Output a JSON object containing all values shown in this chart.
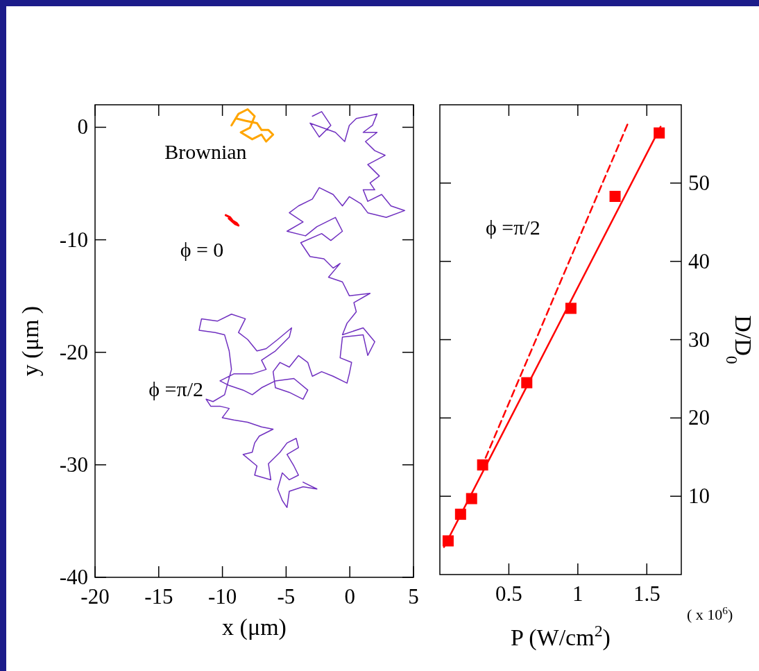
{
  "chart_data": [
    {
      "type": "line",
      "xlabel": "x (μm)",
      "ylabel": "y (μm )",
      "xlim": [
        -20,
        5
      ],
      "xticks": [
        -20,
        -15,
        -10,
        -5,
        0,
        5
      ],
      "ylim": [
        -40,
        2
      ],
      "yticks": [
        -40,
        -30,
        -20,
        -10,
        0
      ],
      "series": [
        {
          "name": "Brownian",
          "color": "#ffa500",
          "x": [
            -9.29,
            -8.74,
            -8.02,
            -7.47,
            -7.84,
            -8.56,
            -7.66,
            -6.93,
            -6.57,
            -6.02,
            -6.39,
            -6.93,
            -7.29,
            -8.2,
            -8.92
          ],
          "values": [
            0.17,
            1.19,
            1.6,
            0.98,
            -0.04,
            -0.45,
            -1.06,
            -0.65,
            -1.27,
            -0.65,
            -0.24,
            -0.24,
            0.37,
            0.58,
            0.78
          ]
        },
        {
          "name": "ϕ = 0",
          "color": "#ff0000",
          "x": [
            -9.74,
            -9.4,
            -9.2,
            -8.9,
            -8.74,
            -9.0,
            -9.5
          ],
          "values": [
            -7.81,
            -8.0,
            -8.3,
            -8.5,
            -8.73,
            -8.6,
            -8.1
          ]
        },
        {
          "name": "ϕ =π/2",
          "color": "#7030c0",
          "x": [
            -2.94,
            -2.21,
            -1.49,
            -2.4,
            -3.12,
            -1.13,
            -0.4,
            -0.04,
            0.51,
            1.41,
            2.14,
            1.78,
            1.05,
            2.14,
            1.23,
            1.96,
            2.77,
            1.41,
            2.32,
            1.59,
            1.96,
            1.05,
            1.41,
            2.5,
            3.23,
            4.31,
            2.86,
            1.41,
            0.87,
            -0.04,
            -0.58,
            -1.31,
            -2.4,
            -2.94,
            -4.03,
            -4.75,
            -3.67,
            -4.93,
            -3.48,
            -2.58,
            -1.13,
            -0.58,
            -1.49,
            -2.21,
            -3.85,
            -3.12,
            -2.03,
            -1.31,
            -0.76,
            -1.67,
            -0.58,
            -0.04,
            1.59,
            0.32,
            0.51,
            -0.22,
            -0.58,
            1.05,
            1.96,
            1.41,
            1.05,
            -0.58,
            -0.76,
            0.14,
            -0.04,
            -0.22,
            -1.31,
            -2.21,
            -2.94,
            -3.3,
            -4.03,
            -4.75,
            -5.48,
            -6.02,
            -5.84,
            -4.75,
            -3.67,
            -3.3,
            -4.39,
            -5.84,
            -6.93,
            -7.66,
            -8.38,
            -9.47,
            -10.19,
            -9.11,
            -7.66,
            -6.57,
            -6.93,
            -5.84,
            -4.75,
            -4.57,
            -5.66,
            -6.57,
            -7.29,
            -8.02,
            -8.74,
            -8.2,
            -9.29,
            -10.38,
            -11.64,
            -11.83,
            -10.56,
            -9.83,
            -9.47,
            -9.29,
            -9.83,
            -10.74,
            -11.28,
            -10.92,
            -10.19,
            -9.47,
            -10.01,
            -9.11,
            -8.02,
            -6.93,
            -6.02,
            -7.11,
            -7.47,
            -7.66,
            -8.38,
            -7.29,
            -7.47,
            -6.2,
            -6.39,
            -5.48,
            -4.93,
            -4.21,
            -4.03,
            -4.93,
            -4.39,
            -4.03,
            -4.75,
            -5.3,
            -5.66,
            -5.3,
            -4.93,
            -4.75,
            -3.67,
            -2.58,
            -3.67
          ],
          "values": [
            0.98,
            1.39,
            0.17,
            -0.86,
            0.37,
            -0.45,
            -1.27,
            0.17,
            0.78,
            0.98,
            1.19,
            0.17,
            -0.45,
            -0.45,
            -1.27,
            -2.08,
            -2.49,
            -3.31,
            -4.33,
            -4.95,
            -5.56,
            -5.56,
            -6.58,
            -5.97,
            -6.99,
            -7.4,
            -8.01,
            -7.6,
            -6.79,
            -6.17,
            -6.99,
            -5.97,
            -5.36,
            -6.38,
            -6.99,
            -7.6,
            -8.42,
            -9.24,
            -9.65,
            -8.83,
            -8.01,
            -9.24,
            -10.06,
            -9.45,
            -10.26,
            -11.49,
            -11.69,
            -12.51,
            -12.1,
            -13.33,
            -13.74,
            -14.97,
            -14.76,
            -15.58,
            -16.4,
            -17.42,
            -18.44,
            -17.83,
            -19.06,
            -20.28,
            -18.45,
            -18.65,
            -20.49,
            -20.9,
            -21.92,
            -22.74,
            -22.13,
            -21.72,
            -22.13,
            -20.9,
            -20.29,
            -21.31,
            -20.9,
            -21.72,
            -23.15,
            -23.56,
            -24.17,
            -23.36,
            -22.33,
            -22.54,
            -23.15,
            -23.77,
            -23.36,
            -22.95,
            -22.54,
            -21.92,
            -21.92,
            -21.52,
            -20.7,
            -19.88,
            -18.65,
            -17.83,
            -18.86,
            -19.68,
            -19.88,
            -18.86,
            -18.24,
            -17.02,
            -16.61,
            -17.22,
            -17.02,
            -18.04,
            -18.24,
            -18.45,
            -19.88,
            -21.52,
            -23.77,
            -24.38,
            -24.17,
            -24.79,
            -24.79,
            -24.99,
            -25.81,
            -26.01,
            -26.22,
            -26.63,
            -26.83,
            -27.45,
            -28.06,
            -28.88,
            -29.08,
            -30.1,
            -30.92,
            -31.33,
            -29.9,
            -28.88,
            -28.06,
            -27.65,
            -28.47,
            -29.08,
            -30.1,
            -30.92,
            -31.33,
            -30.72,
            -32.15,
            -33.17,
            -33.79,
            -32.35,
            -31.95,
            -32.15,
            -31.54
          ]
        }
      ]
    },
    {
      "type": "scatter",
      "xlabel": "P (W/cm$^{2}$)",
      "ylabel": "D/D$_{0}$",
      "xlim": [
        0,
        1.75
      ],
      "xticks": [
        0.5,
        1,
        1.5
      ],
      "ylim": [
        0,
        60
      ],
      "yticks": [
        10,
        20,
        30,
        40,
        50
      ],
      "annotations": [
        "ϕ =π/2",
        "( x 10$^{6}$)"
      ],
      "series": [
        {
          "color": "#ff0000",
          "marker": "square",
          "x": [
            0.06,
            0.15,
            0.23,
            0.31,
            0.63,
            0.95,
            1.27,
            1.59
          ],
          "values": [
            4.3,
            7.7,
            9.7,
            14.0,
            24.5,
            34.0,
            48.3,
            56.4
          ]
        },
        {
          "type": "line",
          "color": "#ff0000",
          "line_style": "solid",
          "x": [
            0.03,
            1.6
          ],
          "values": [
            3.5,
            57.2
          ]
        },
        {
          "type": "line",
          "color": "#ff0000",
          "line_style": "dashed",
          "x": [
            0.3,
            1.36
          ],
          "values": [
            13.6,
            57.5
          ]
        }
      ]
    }
  ]
}
